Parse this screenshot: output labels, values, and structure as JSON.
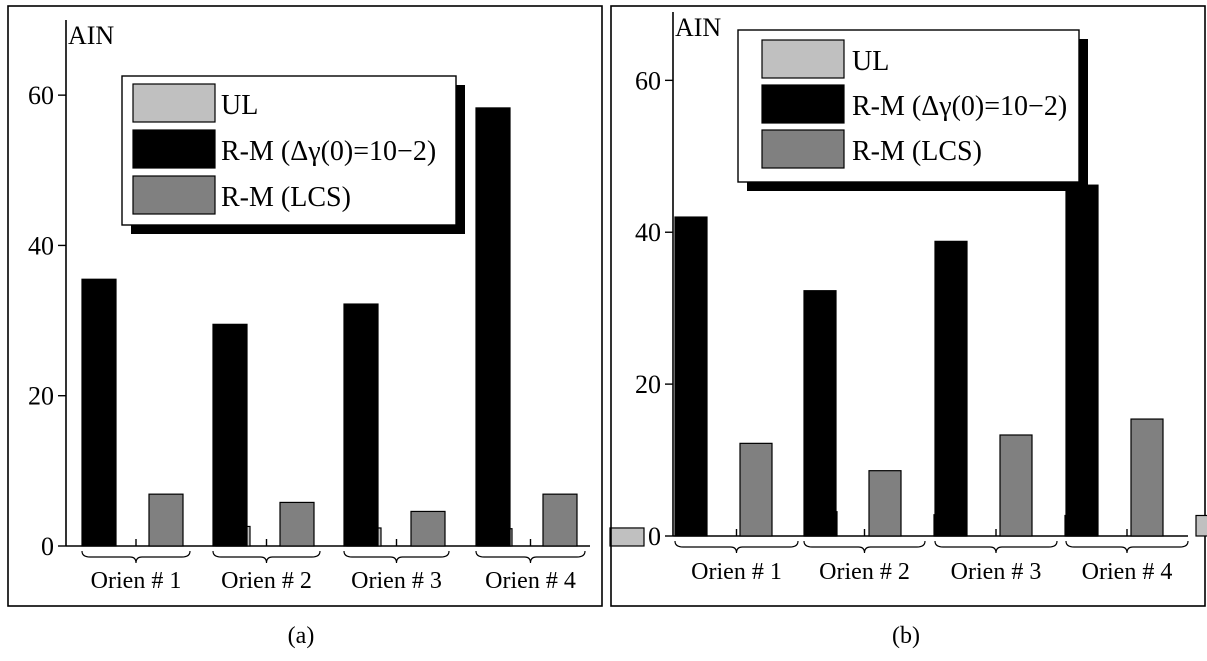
{
  "chart_data": [
    {
      "type": "bar",
      "ylabel": "AIN",
      "ylim": [
        0,
        70
      ],
      "yticks": [
        0,
        20,
        40,
        60
      ],
      "categories": [
        "Orien # 1",
        "Orien # 2",
        "Orien # 3",
        "Orien # 4"
      ],
      "series": [
        {
          "name": "R-M (Δγ(0)=10−2)",
          "color": "#000000",
          "values": [
            35.5,
            29.5,
            32.2,
            58.3
          ]
        },
        {
          "name": "R-M (LCS)",
          "color": "#808080",
          "values": [
            6.9,
            5.8,
            4.6,
            6.9
          ]
        },
        {
          "name": "UL",
          "color": "#c0c0c0",
          "values": [
            2.6,
            2.4,
            2.3,
            2.4
          ]
        }
      ],
      "legend_order": [
        "UL",
        "R-M (Δγ(0)=10−2)",
        "R-M (LCS)"
      ],
      "legend_position": "top-right",
      "caption": "(a)"
    },
    {
      "type": "bar",
      "ylabel": "AIN",
      "ylim": [
        0,
        69
      ],
      "yticks": [
        0,
        20,
        40,
        60
      ],
      "categories": [
        "Orien # 1",
        "Orien # 2",
        "Orien # 3",
        "Orien # 4"
      ],
      "series": [
        {
          "name": "R-M (Δγ(0)=10−2)",
          "color": "#000000",
          "values": [
            42.0,
            32.3,
            38.8,
            46.2
          ]
        },
        {
          "name": "R-M (LCS)",
          "color": "#808080",
          "values": [
            12.2,
            8.6,
            13.3,
            15.4
          ]
        },
        {
          "name": "UL",
          "color": "#c0c0c0",
          "values": [
            3.2,
            2.8,
            2.7,
            2.7
          ]
        }
      ],
      "legend_order": [
        "UL",
        "R-M (Δγ(0)=10−2)",
        "R-M (LCS)"
      ],
      "legend_position": "top-center",
      "caption": "(b)"
    }
  ]
}
